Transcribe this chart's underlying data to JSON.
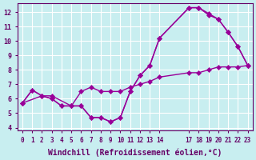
{
  "background_color": "#c8eef0",
  "grid_color": "#ffffff",
  "line_color": "#990099",
  "marker": "D",
  "marker_size": 3,
  "line_width": 1.0,
  "xlabel": "Windchill (Refroidissement éolien,°C)",
  "xlabel_fontsize": 7,
  "ylim": [
    3.8,
    12.6
  ],
  "xlim": [
    -0.5,
    23.5
  ],
  "xtick_positions": [
    0,
    1,
    2,
    3,
    4,
    5,
    6,
    7,
    8,
    9,
    10,
    11,
    12,
    13,
    14,
    17,
    18,
    19,
    20,
    21,
    22,
    23
  ],
  "xtick_labels": [
    "0",
    "1",
    "2",
    "3",
    "4",
    "5",
    "6",
    "7",
    "8",
    "9",
    "10",
    "11",
    "12",
    "13",
    "14",
    "17",
    "18",
    "19",
    "20",
    "21",
    "22",
    "23"
  ],
  "ytick_positions": [
    4,
    5,
    6,
    7,
    8,
    9,
    10,
    11,
    12
  ],
  "ytick_labels": [
    "4",
    "5",
    "6",
    "7",
    "8",
    "9",
    "10",
    "11",
    "12"
  ],
  "series1_x": [
    0,
    1,
    2,
    3,
    4,
    5,
    6,
    7,
    8,
    9,
    10,
    11,
    12,
    13,
    14,
    17,
    18,
    19,
    20,
    21,
    22,
    23
  ],
  "series1_y": [
    5.7,
    6.6,
    6.2,
    6.0,
    5.5,
    5.5,
    5.5,
    4.7,
    4.7,
    4.4,
    4.7,
    6.5,
    7.6,
    8.3,
    10.2,
    12.3,
    12.3,
    11.8,
    11.5,
    10.6,
    9.6,
    8.3
  ],
  "series2_x": [
    0,
    1,
    2,
    3,
    4,
    5,
    6,
    7,
    8,
    9,
    10,
    11,
    12,
    13,
    14,
    17,
    18,
    19,
    20,
    21,
    22,
    23
  ],
  "series2_y": [
    5.7,
    6.6,
    6.2,
    6.0,
    5.5,
    5.5,
    5.5,
    4.7,
    4.7,
    4.4,
    4.7,
    6.5,
    7.6,
    8.3,
    10.2,
    12.3,
    12.3,
    11.9,
    11.5,
    10.6,
    9.6,
    8.3
  ],
  "series3_x": [
    0,
    2,
    3,
    5,
    6,
    7,
    8,
    9,
    10,
    11,
    12,
    13,
    14,
    17,
    18,
    19,
    20,
    21,
    22,
    23
  ],
  "series3_y": [
    5.7,
    6.2,
    6.2,
    5.5,
    6.5,
    6.8,
    6.5,
    6.5,
    6.5,
    6.8,
    7.0,
    7.2,
    7.5,
    7.8,
    7.8,
    8.0,
    8.2,
    8.2,
    8.2,
    8.3
  ]
}
